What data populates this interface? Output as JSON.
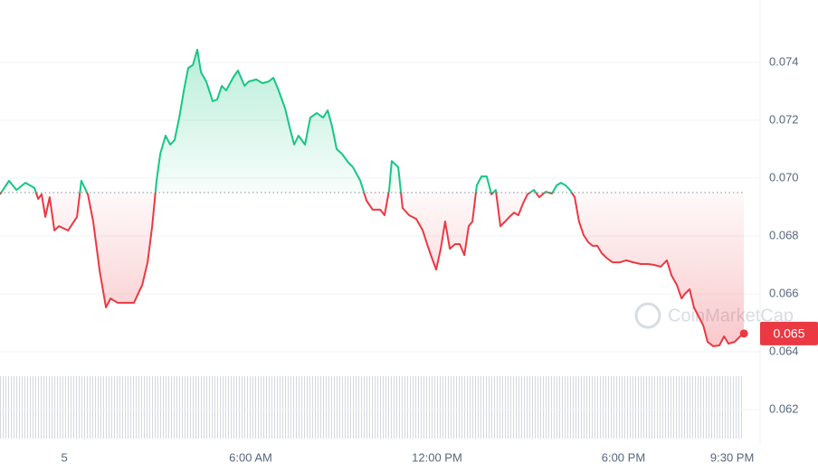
{
  "chart_data": {
    "type": "line",
    "watermark": "CoinMarketCap",
    "x": [
      -2.07,
      -1.78,
      -1.54,
      -1.25,
      -0.96,
      -0.84,
      -0.73,
      -0.61,
      -0.47,
      -0.32,
      -0.17,
      0.12,
      0.41,
      0.55,
      0.76,
      0.93,
      1.14,
      1.34,
      1.49,
      1.72,
      1.95,
      2.24,
      2.51,
      2.68,
      2.83,
      2.97,
      3.09,
      3.26,
      3.41,
      3.55,
      3.7,
      3.85,
      3.99,
      4.14,
      4.28,
      4.4,
      4.57,
      4.78,
      4.92,
      5.07,
      5.21,
      5.45,
      5.59,
      5.8,
      5.94,
      6.18,
      6.38,
      6.58,
      6.73,
      6.9,
      7.11,
      7.25,
      7.4,
      7.54,
      7.75,
      7.92,
      8.13,
      8.33,
      8.48,
      8.62,
      8.77,
      8.94,
      9.15,
      9.29,
      9.53,
      9.73,
      9.93,
      10.17,
      10.31,
      10.46,
      10.54,
      10.75,
      10.89,
      11.1,
      11.33,
      11.54,
      11.68,
      11.83,
      11.97,
      12.12,
      12.26,
      12.41,
      12.58,
      12.73,
      12.88,
      13.02,
      13.14,
      13.28,
      13.43,
      13.6,
      13.75,
      13.89,
      14.04,
      14.19,
      14.33,
      14.48,
      14.62,
      14.77,
      14.91,
      15.12,
      15.29,
      15.5,
      15.7,
      15.85,
      15.99,
      16.14,
      16.28,
      16.43,
      16.57,
      16.72,
      16.87,
      17.01,
      17.16,
      17.3,
      17.45,
      17.65,
      17.89,
      18.09,
      18.32,
      18.56,
      18.79,
      18.99,
      19.2,
      19.4,
      19.55,
      19.72,
      19.87,
      19.98,
      20.13,
      20.27,
      20.42,
      20.57,
      20.71,
      20.89,
      21.09,
      21.24,
      21.38,
      21.58,
      21.76,
      21.88
    ],
    "values": [
      0.06944,
      0.06991,
      0.06959,
      0.06984,
      0.06966,
      0.06928,
      0.06944,
      0.06866,
      0.06934,
      0.06819,
      0.06834,
      0.06819,
      0.06866,
      0.06991,
      0.06944,
      0.0685,
      0.06678,
      0.06553,
      0.06584,
      0.06569,
      0.06569,
      0.06569,
      0.06631,
      0.06709,
      0.06834,
      0.06991,
      0.07084,
      0.07147,
      0.07116,
      0.07131,
      0.07209,
      0.07303,
      0.07381,
      0.07391,
      0.07444,
      0.07366,
      0.07334,
      0.07266,
      0.07272,
      0.07319,
      0.07303,
      0.0735,
      0.07372,
      0.07319,
      0.07334,
      0.07341,
      0.07328,
      0.07334,
      0.07347,
      0.07303,
      0.07241,
      0.07178,
      0.07116,
      0.07147,
      0.07116,
      0.07209,
      0.07225,
      0.07209,
      0.07234,
      0.07178,
      0.071,
      0.07084,
      0.07053,
      0.07038,
      0.06991,
      0.06922,
      0.06891,
      0.06891,
      0.06872,
      0.06959,
      0.07059,
      0.07038,
      0.06897,
      0.06872,
      0.06859,
      0.06819,
      0.06772,
      0.06725,
      0.06684,
      0.06756,
      0.0685,
      0.06756,
      0.06772,
      0.06772,
      0.06734,
      0.06834,
      0.0685,
      0.06975,
      0.07006,
      0.07006,
      0.06944,
      0.06959,
      0.06834,
      0.0685,
      0.06866,
      0.06881,
      0.06872,
      0.06913,
      0.06944,
      0.06959,
      0.06934,
      0.06953,
      0.06947,
      0.06975,
      0.06984,
      0.06975,
      0.06959,
      0.06934,
      0.0685,
      0.06803,
      0.06778,
      0.06766,
      0.06766,
      0.06741,
      0.06725,
      0.06709,
      0.06709,
      0.06716,
      0.06709,
      0.06703,
      0.06703,
      0.067,
      0.06694,
      0.06716,
      0.06663,
      0.06631,
      0.06584,
      0.066,
      0.06616,
      0.06553,
      0.06522,
      0.06491,
      0.06434,
      0.06419,
      0.06422,
      0.06453,
      0.06428,
      0.06434,
      0.06453,
      0.06463
    ],
    "value_labels": [
      null,
      null,
      null,
      null,
      null,
      null,
      null,
      null,
      null,
      null,
      null,
      null,
      null,
      null,
      null,
      null,
      null,
      null,
      null,
      null,
      null,
      null,
      null,
      null,
      null,
      null,
      null,
      null,
      null,
      null,
      null,
      null,
      null,
      null,
      null,
      null,
      null,
      null,
      null,
      null,
      null,
      null,
      null,
      null,
      null,
      null,
      null,
      null,
      null,
      null,
      null,
      null,
      null,
      null,
      null,
      null,
      null,
      null,
      null,
      null,
      null,
      null,
      null,
      null,
      null,
      null,
      null,
      null,
      null,
      null,
      null,
      null,
      null,
      null,
      null,
      null,
      null,
      null,
      null,
      null,
      null,
      null,
      null,
      null,
      null,
      null,
      null,
      null,
      null,
      null,
      null,
      null,
      null,
      null,
      null,
      null,
      null,
      null,
      null,
      null,
      null,
      null,
      null,
      null,
      null,
      null,
      null,
      null,
      null,
      null,
      null,
      null,
      null,
      null,
      null,
      null,
      null,
      null,
      null,
      null,
      null,
      null,
      null,
      null,
      null,
      null,
      null,
      null,
      null,
      null,
      null,
      null,
      null,
      null,
      null,
      null,
      null,
      null,
      null,
      "0.065"
    ],
    "reference_value": 0.0695,
    "up_color": "#16c784",
    "down_color": "#ea3943",
    "xlim": [
      -2.07,
      22.4
    ],
    "xticks": [
      {
        "value": 0,
        "label": "5"
      },
      {
        "value": 6,
        "label": "6:00 AM"
      },
      {
        "value": 12,
        "label": "12:00 PM"
      },
      {
        "value": 18,
        "label": "6:00 PM"
      },
      {
        "value": 21.5,
        "label": "9:30 PM"
      }
    ],
    "ylim": [
      0.061,
      0.076
    ],
    "yticks": [
      0.062,
      0.064,
      0.066,
      0.068,
      {
        "value": 0.07,
        "label": "0.070"
      },
      0.072,
      0.074
    ],
    "grid": true
  }
}
